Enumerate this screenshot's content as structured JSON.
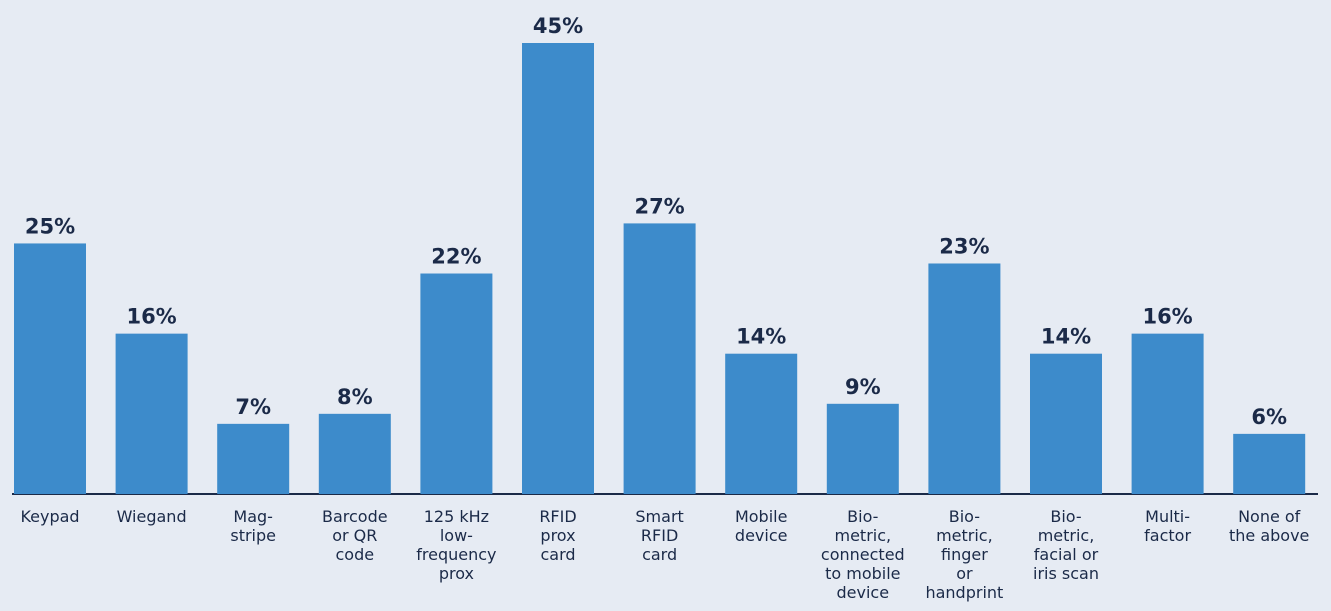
{
  "chart_data": {
    "type": "bar",
    "categories": [
      "Keypad",
      "Wiegand",
      "Mag-\nstripe",
      "Barcode\nor QR\ncode",
      "125 kHz\nlow-\nfrequency\nprox",
      "RFID\nprox\ncard",
      "Smart\nRFID\ncard",
      "Mobile\ndevice",
      "Bio-\nmetric,\nconnected\nto mobile\ndevice",
      "Bio-\nmetric,\nfinger\nor\nhandprint",
      "Bio-\nmetric,\nfacial or\niris scan",
      "Multi-\nfactor",
      "None of\nthe above"
    ],
    "values": [
      25,
      16,
      7,
      8,
      22,
      45,
      27,
      14,
      9,
      23,
      14,
      16,
      6
    ],
    "value_labels": [
      "25%",
      "16%",
      "7%",
      "8%",
      "22%",
      "45%",
      "27%",
      "14%",
      "9%",
      "23%",
      "14%",
      "16%",
      "6%"
    ],
    "color": "#3d8bcb",
    "ylim": [
      0,
      45
    ]
  }
}
